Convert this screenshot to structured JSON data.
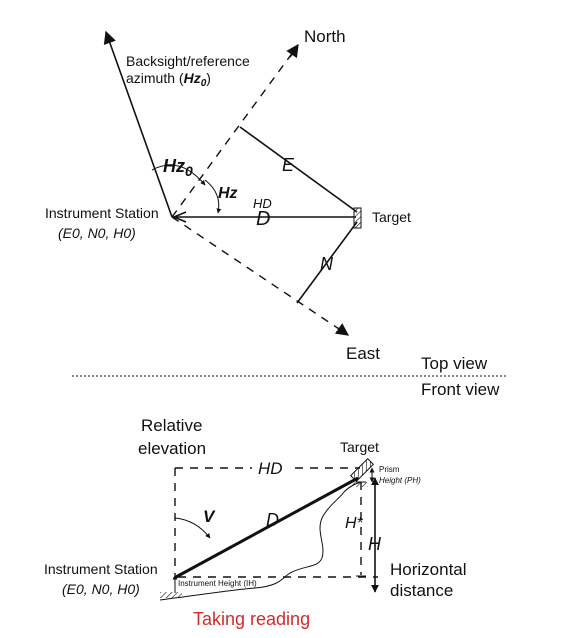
{
  "top_view": {
    "north": "North",
    "east": "East",
    "backsight_line1": "Backsight/reference",
    "backsight_line2": "azimuth (",
    "backsight_hz": "Hz",
    "backsight_sub": "0",
    "backsight_close": ")",
    "hz0_main": "Hz",
    "hz0_sub": "0",
    "hz": "Hz",
    "hd_handwritten": "HD",
    "d": "D",
    "e": "E",
    "n": "N",
    "target": "Target",
    "station_name": "Instrument Station",
    "station_coords": "(E0, N0, H0)"
  },
  "divider": {
    "top_label": "Top view",
    "bottom_label": "Front view"
  },
  "front_view": {
    "relative_line1": "Relative",
    "relative_line2": "elevation",
    "target": "Target",
    "hd": "HD",
    "prism_line1": "Prism",
    "prism_line2": "Height (PH)",
    "v": "V",
    "d": "D",
    "h_star": "H*",
    "h": "H",
    "horizontal_line1": "Horizontal",
    "horizontal_line2": "distance",
    "instrument_height": "Instrument Height (IH)",
    "station_name": "Instrument Station",
    "station_coords": "(E0, N0, H0)"
  },
  "caption": "Taking reading",
  "colors": {
    "caption": "#d42a2a",
    "ink": "#111111"
  }
}
